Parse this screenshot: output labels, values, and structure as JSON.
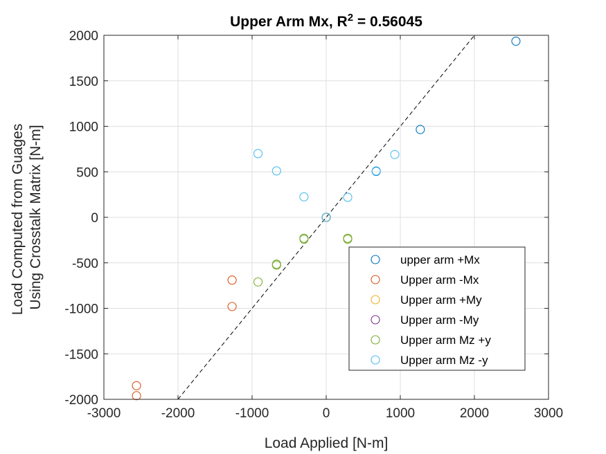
{
  "chart_data": {
    "type": "scatter",
    "title": {
      "main": "Upper Arm Mx, R",
      "sup": "2",
      "rest": " = 0.56045"
    },
    "xlabel": "Load Applied [N-m]",
    "ylabel": [
      "Load Computed from Guages",
      "Using Crosstalk Matrix [N-m]"
    ],
    "xlim": [
      -3000,
      3000
    ],
    "ylim": [
      -2000,
      2000
    ],
    "xticks": [
      -3000,
      -2000,
      -1000,
      0,
      1000,
      2000,
      3000
    ],
    "yticks": [
      -2000,
      -1500,
      -1000,
      -500,
      0,
      500,
      1000,
      1500,
      2000
    ],
    "xtick_labels": [
      "-3000",
      "-2000",
      "-1000",
      "0",
      "1000",
      "2000",
      "3000"
    ],
    "ytick_labels": [
      "-2000",
      "-1500",
      "-1000",
      "-500",
      "0",
      "500",
      "1000",
      "1500",
      "2000"
    ],
    "grid": true,
    "legend_position": "bottom-right",
    "reference_line": {
      "style": "dashed",
      "color": "#000000",
      "x": [
        -2000,
        2000
      ],
      "y": [
        -2000,
        2000
      ]
    },
    "series": [
      {
        "name": "upper arm +Mx",
        "color": "#0072BD",
        "x": [
          0,
          675,
          1270,
          2560
        ],
        "y": [
          0,
          505,
          965,
          1935
        ]
      },
      {
        "name": "Upper arm -Mx",
        "color": "#D95319",
        "x": [
          0,
          -1270,
          -1270,
          -2560,
          -2560
        ],
        "y": [
          0,
          -690,
          -980,
          -1850,
          -1960
        ]
      },
      {
        "name": "Upper arm +My",
        "color": "#EDB120",
        "x": [
          0
        ],
        "y": [
          0
        ]
      },
      {
        "name": "Upper arm -My",
        "color": "#7E2F8E",
        "x": [
          0
        ],
        "y": [
          0
        ]
      },
      {
        "name": "Upper arm Mz +y",
        "color": "#77AC30",
        "x": [
          0,
          -300,
          -300,
          -670,
          -670,
          -920,
          290,
          290
        ],
        "y": [
          0,
          -230,
          -240,
          -515,
          -525,
          -710,
          -230,
          -240
        ]
      },
      {
        "name": "Upper arm Mz -y",
        "color": "#4DBEEE",
        "x": [
          -920,
          -670,
          -300,
          0,
          290,
          675,
          925
        ],
        "y": [
          700,
          510,
          225,
          0,
          220,
          510,
          690
        ]
      }
    ]
  }
}
